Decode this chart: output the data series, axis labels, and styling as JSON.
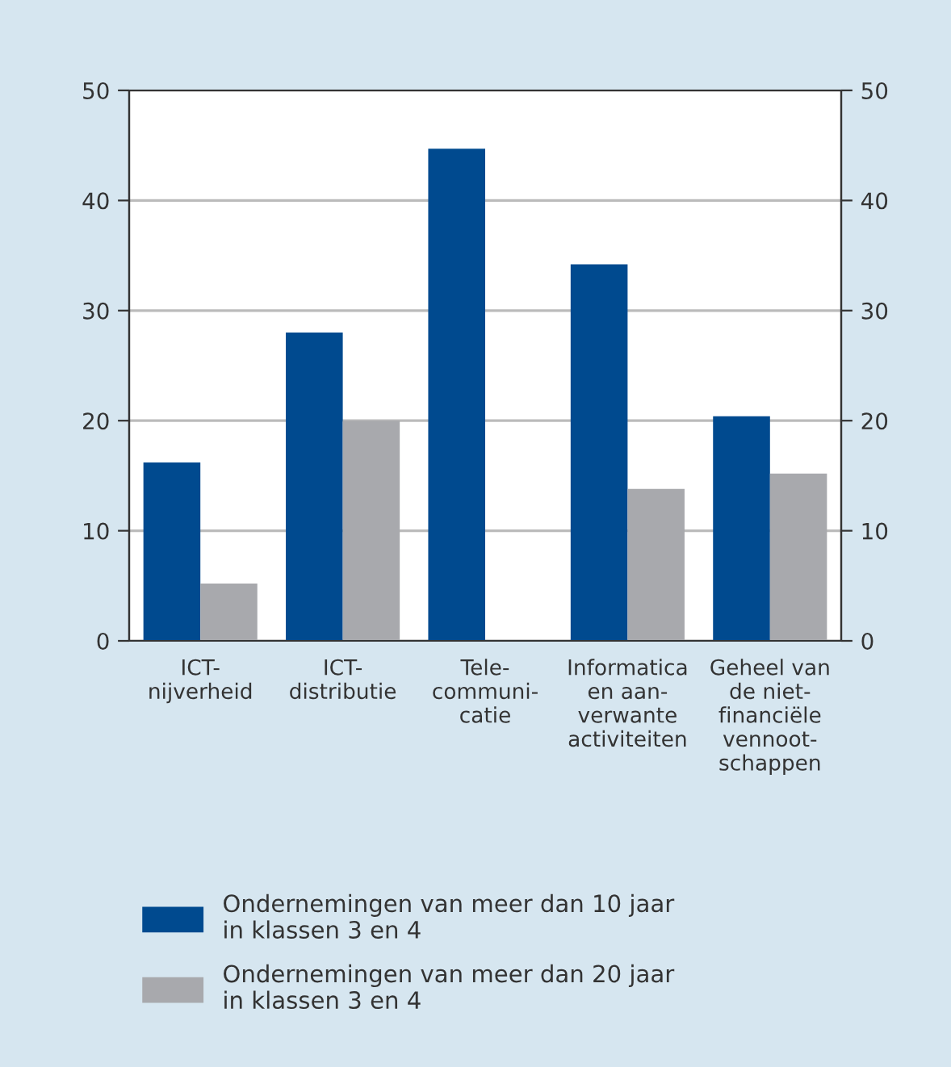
{
  "chart_data": {
    "type": "bar",
    "categories": [
      "ICT-\nnijverheid",
      "ICT-\ndistributie",
      "Tele-\ncommuni-\ncatie",
      "Informatica\nen aan-\nverwante\nactiviteiten",
      "Geheel van\nde niet-\nfinanciële\nvennoot-\nschappen"
    ],
    "series": [
      {
        "name": "Ondernemingen van meer dan 10 jaar\nin klassen 3 en 4",
        "color": "#004a8f",
        "values": [
          16.2,
          28.0,
          44.7,
          34.2,
          20.4
        ]
      },
      {
        "name": "Ondernemingen van meer dan 20 jaar\nin klassen 3 en 4",
        "color": "#a8a9ad",
        "values": [
          5.2,
          20.0,
          null,
          13.8,
          15.2
        ]
      }
    ],
    "ylim": [
      0,
      50
    ],
    "yticks": [
      0,
      10,
      20,
      30,
      40,
      50
    ],
    "y2lim": [
      0,
      50
    ],
    "y2ticks": [
      0,
      10,
      20,
      30,
      40,
      50
    ],
    "grid": "y",
    "legend": "bottom"
  }
}
